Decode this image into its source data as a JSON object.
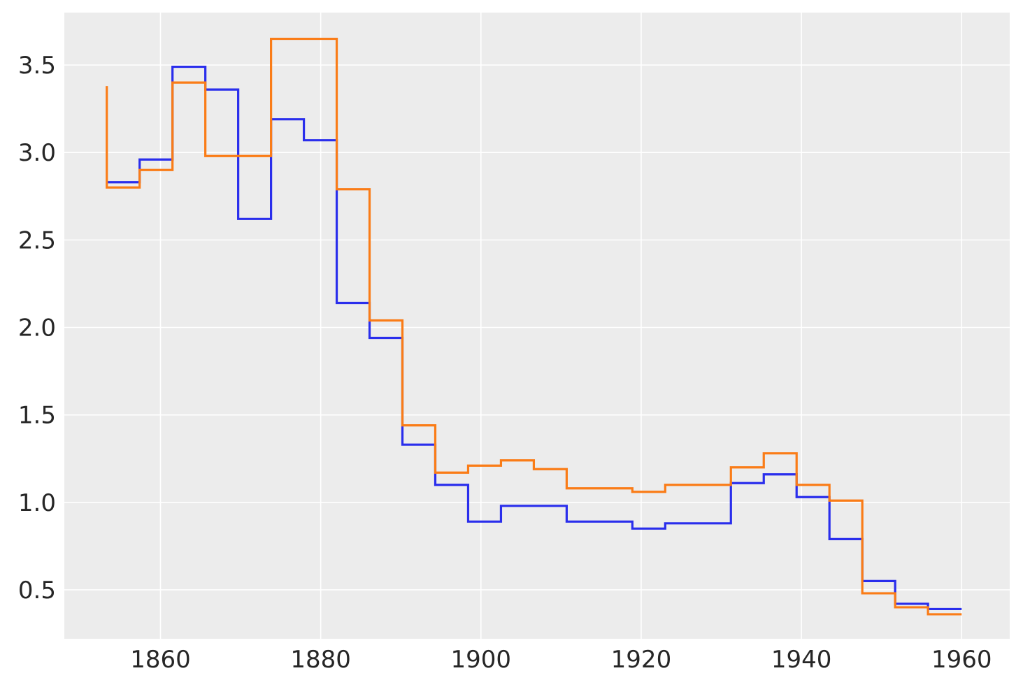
{
  "chart_data": {
    "type": "line",
    "step": "post",
    "title": "",
    "xlabel": "",
    "ylabel": "",
    "xlim": [
      1848,
      1966
    ],
    "ylim": [
      0.22,
      3.8
    ],
    "xticks": [
      1860,
      1880,
      1900,
      1920,
      1940,
      1960
    ],
    "xtick_labels": [
      "1860",
      "1880",
      "1900",
      "1920",
      "1940",
      "1960"
    ],
    "yticks": [
      0.5,
      1.0,
      1.5,
      2.0,
      2.5,
      3.0,
      3.5
    ],
    "ytick_labels": [
      "0.5",
      "1.0",
      "1.5",
      "2.0",
      "2.5",
      "3.0",
      "3.5"
    ],
    "grid": true,
    "legend": "none",
    "background": "#ececec",
    "series": [
      {
        "color": "#2a2eec",
        "x": [
          1853.3,
          1857.4,
          1861.5,
          1865.6,
          1869.7,
          1873.8,
          1877.9,
          1882.0,
          1886.1,
          1890.2,
          1894.3,
          1898.4,
          1902.5,
          1906.6,
          1910.7,
          1914.8,
          1918.9,
          1923.0,
          1927.1,
          1931.2,
          1935.3,
          1939.4,
          1943.5,
          1947.6,
          1951.7,
          1955.8,
          1960.0
        ],
        "y": [
          2.83,
          2.96,
          3.49,
          3.36,
          2.62,
          3.19,
          3.07,
          2.14,
          1.94,
          1.33,
          1.1,
          0.89,
          0.98,
          0.98,
          0.89,
          0.89,
          0.85,
          0.88,
          0.88,
          1.11,
          1.16,
          1.03,
          0.79,
          0.55,
          0.42,
          0.39,
          0.39
        ]
      },
      {
        "color": "#fa7c17",
        "start_y": 3.38,
        "x": [
          1853.3,
          1857.4,
          1861.5,
          1865.6,
          1869.7,
          1873.8,
          1877.9,
          1882.0,
          1886.1,
          1890.2,
          1894.3,
          1898.4,
          1902.5,
          1906.6,
          1910.7,
          1914.8,
          1918.9,
          1923.0,
          1927.1,
          1931.2,
          1935.3,
          1939.4,
          1943.5,
          1947.6,
          1951.7,
          1955.8,
          1960.0
        ],
        "y": [
          2.8,
          2.9,
          3.4,
          2.98,
          2.98,
          3.65,
          3.65,
          2.79,
          2.04,
          1.44,
          1.17,
          1.21,
          1.24,
          1.19,
          1.08,
          1.08,
          1.06,
          1.1,
          1.1,
          1.2,
          1.28,
          1.1,
          1.01,
          0.48,
          0.4,
          0.36,
          0.36
        ]
      }
    ]
  }
}
